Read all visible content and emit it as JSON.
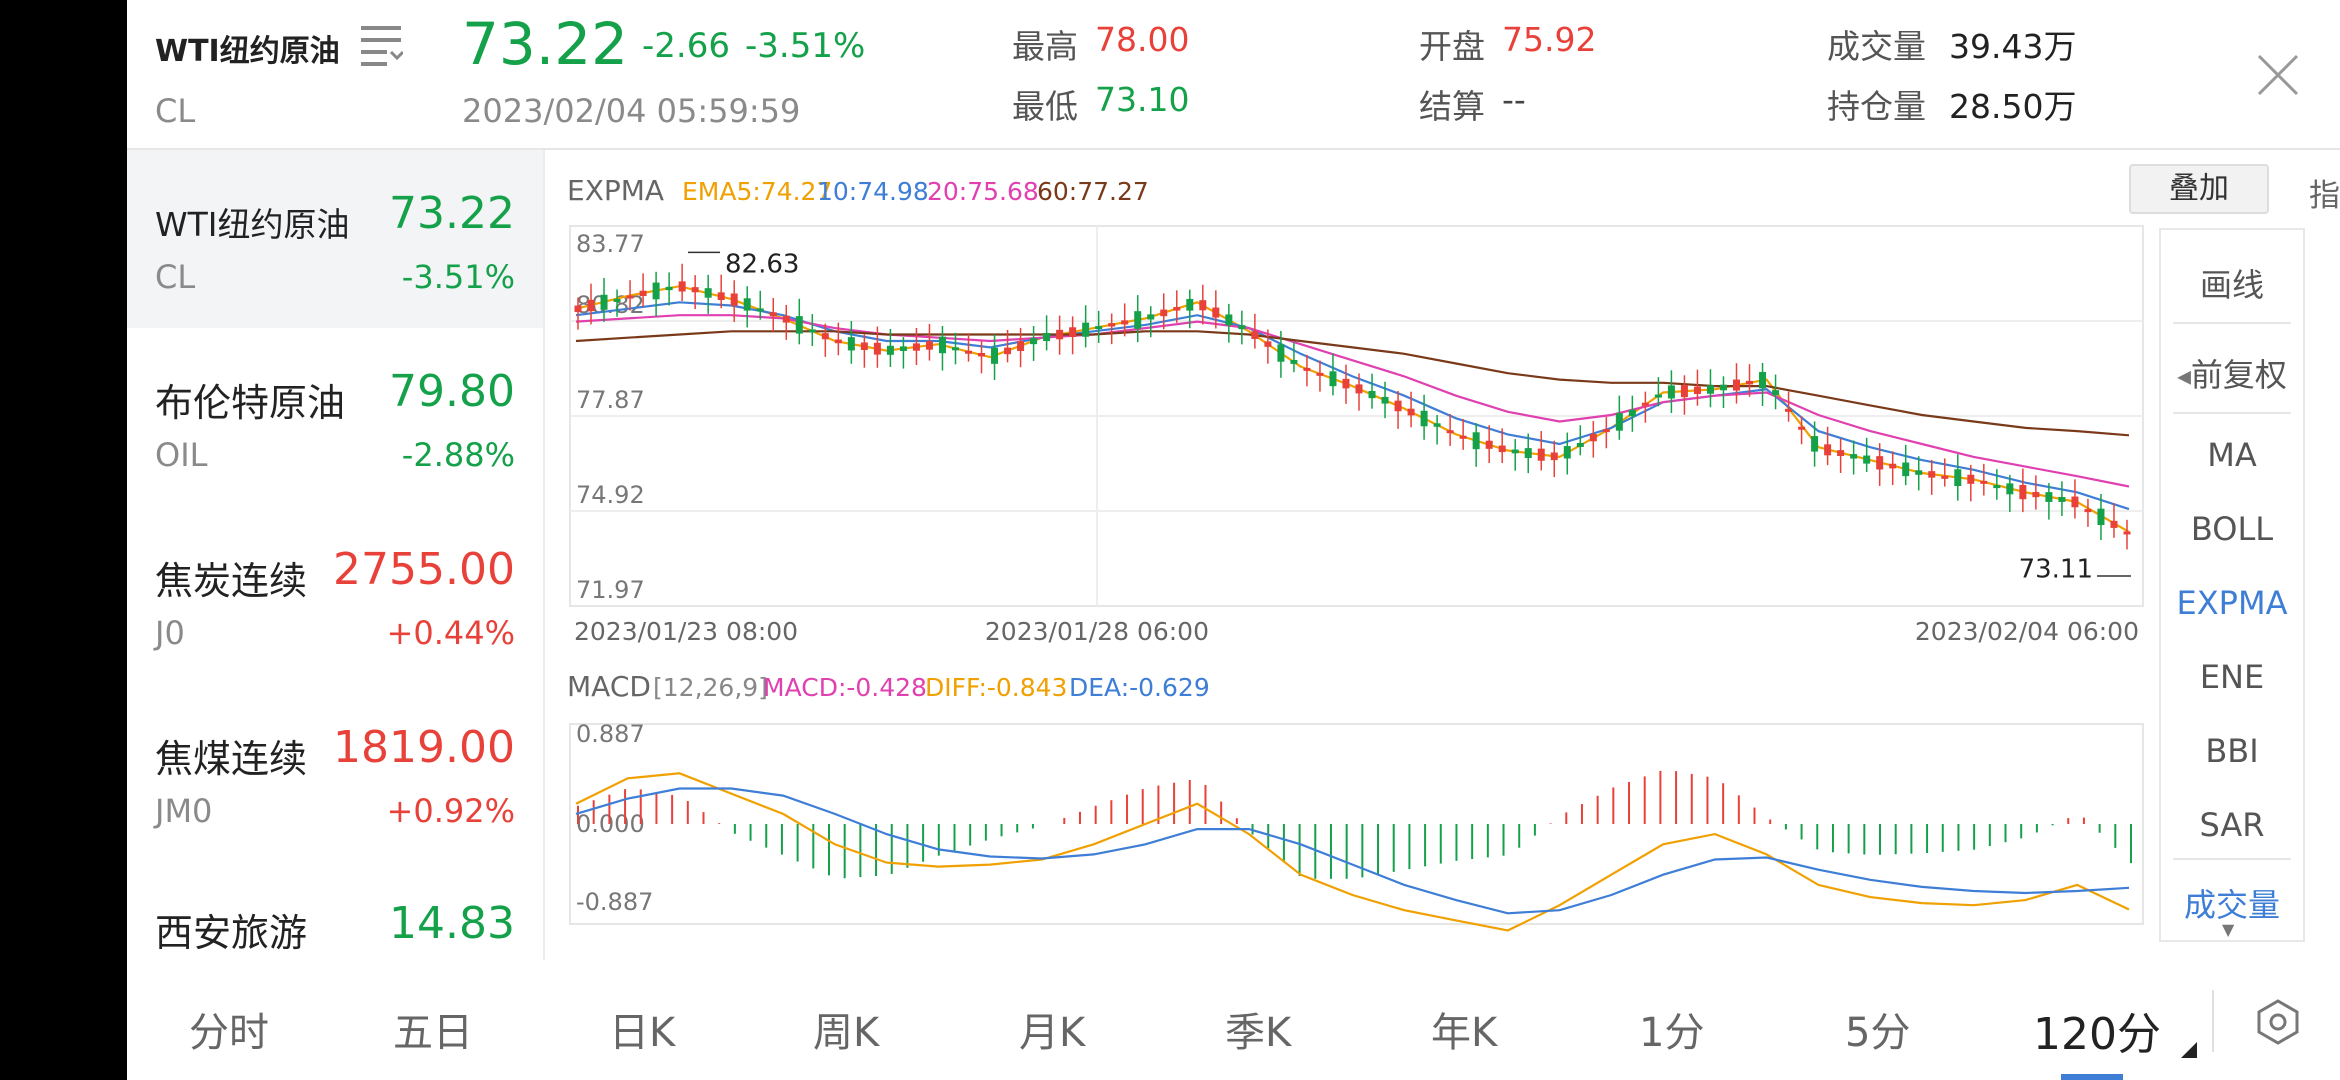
{
  "header": {
    "name": "WTI纽约原油",
    "code": "CL",
    "price": "73.22",
    "change": "-2.66",
    "change_pct": "-3.51%",
    "datetime": "2023/02/04 05:59:59",
    "stats": {
      "high_label": "最高",
      "high_value": "78.00",
      "low_label": "最低",
      "low_value": "73.10",
      "open_label": "开盘",
      "open_value": "75.92",
      "settle_label": "结算",
      "settle_value": "--",
      "volume_label": "成交量",
      "volume_value": "39.43万",
      "oi_label": "持仓量",
      "oi_value": "28.50万"
    }
  },
  "sidebar": {
    "items": [
      {
        "name": "WTI纽约原油",
        "code": "CL",
        "price": "73.22",
        "change": "-3.51%",
        "color": "#14a14a"
      },
      {
        "name": "布伦特原油",
        "code": "OIL",
        "price": "79.80",
        "change": "-2.88%",
        "color": "#14a14a"
      },
      {
        "name": "焦炭连续",
        "code": "J0",
        "price": "2755.00",
        "change": "+0.44%",
        "color": "#e8413a"
      },
      {
        "name": "焦煤连续",
        "code": "JM0",
        "price": "1819.00",
        "change": "+0.92%",
        "color": "#e8413a"
      },
      {
        "name": "西安旅游",
        "code": "",
        "price": "14.83",
        "change": "",
        "color": "#14a14a"
      }
    ]
  },
  "main_chart": {
    "indicator": "EXPMA",
    "ema5": "EMA5:74.27",
    "ema10": "10:74.98",
    "ema20": "20:75.68",
    "ema60": "60:77.27",
    "overlay_button": "叠加",
    "indicator_button": "指标",
    "y_ticks": [
      "83.77",
      "80.82",
      "77.87",
      "74.92",
      "71.97"
    ],
    "x_ticks": [
      "2023/01/23 08:00",
      "2023/01/28 06:00",
      "2023/02/04 06:00"
    ],
    "high_marker": "82.63",
    "low_marker": "73.11"
  },
  "macd": {
    "title": "MACD",
    "params": "[12,26,9]",
    "macd": "MACD:-0.428",
    "diff": "DIFF:-0.843",
    "dea": "DEA:-0.629",
    "y_ticks": [
      "0.887",
      "0.000",
      "-0.887"
    ]
  },
  "right_panel": {
    "draw": "画线",
    "adjust": "前复权",
    "indicators": [
      "MA",
      "BOLL",
      "EXPMA",
      "ENE",
      "BBI",
      "SAR",
      "成交量"
    ],
    "active": "EXPMA"
  },
  "tabs": [
    "分时",
    "五日",
    "日K",
    "周K",
    "月K",
    "季K",
    "年K",
    "1分",
    "5分",
    "120分"
  ],
  "active_tab": "120分",
  "colors": {
    "up": "#e8413a",
    "down": "#14a14a",
    "ema5": "#f0a000",
    "ema10": "#3e7ed6",
    "ema20": "#e040b0",
    "ema60": "#7a3a1a",
    "accent": "#3e7ed6"
  },
  "chart_data": {
    "type": "line",
    "title": "EXPMA",
    "x_range_labels": [
      "2023/01/23 08:00",
      "2023/01/28 06:00",
      "2023/02/04 06:00"
    ],
    "ylim": [
      71.97,
      83.77
    ],
    "series": [
      {
        "name": "EMA5",
        "values": [
          81.2,
          81.6,
          81.9,
          81.5,
          80.9,
          80.2,
          79.9,
          80.1,
          79.7,
          80.3,
          80.6,
          80.9,
          81.4,
          80.5,
          79.4,
          78.8,
          78.1,
          77.3,
          76.8,
          76.6,
          77.5,
          78.6,
          78.7,
          79.0,
          76.9,
          76.5,
          76.1,
          75.9,
          75.5,
          75.2,
          74.27
        ]
      },
      {
        "name": "10",
        "values": [
          81.0,
          81.2,
          81.4,
          81.3,
          81.0,
          80.5,
          80.2,
          80.2,
          80.0,
          80.3,
          80.5,
          80.7,
          81.0,
          80.6,
          79.8,
          79.1,
          78.5,
          77.8,
          77.3,
          77.0,
          77.5,
          78.3,
          78.5,
          78.7,
          77.4,
          76.9,
          76.5,
          76.2,
          75.8,
          75.5,
          74.98
        ]
      },
      {
        "name": "20",
        "values": [
          80.8,
          80.9,
          81.0,
          81.0,
          80.9,
          80.6,
          80.4,
          80.3,
          80.2,
          80.3,
          80.4,
          80.6,
          80.8,
          80.6,
          80.1,
          79.6,
          79.1,
          78.5,
          78.0,
          77.7,
          77.9,
          78.3,
          78.5,
          78.6,
          77.9,
          77.4,
          77.0,
          76.6,
          76.3,
          76.0,
          75.68
        ]
      },
      {
        "name": "60",
        "values": [
          80.2,
          80.3,
          80.4,
          80.5,
          80.5,
          80.5,
          80.4,
          80.4,
          80.4,
          80.4,
          80.4,
          80.5,
          80.5,
          80.4,
          80.2,
          80.0,
          79.8,
          79.5,
          79.2,
          79.0,
          78.9,
          78.9,
          78.8,
          78.8,
          78.5,
          78.2,
          77.9,
          77.7,
          77.5,
          77.4,
          77.27
        ]
      }
    ],
    "macd": {
      "ylim": [
        -0.887,
        0.887
      ],
      "diff": [
        0.2,
        0.45,
        0.5,
        0.3,
        0.1,
        -0.2,
        -0.38,
        -0.42,
        -0.4,
        -0.35,
        -0.2,
        0.0,
        0.2,
        -0.1,
        -0.5,
        -0.7,
        -0.85,
        -0.95,
        -1.05,
        -0.8,
        -0.5,
        -0.2,
        -0.1,
        -0.3,
        -0.6,
        -0.72,
        -0.78,
        -0.8,
        -0.75,
        -0.6,
        -0.843
      ],
      "dea": [
        0.1,
        0.25,
        0.35,
        0.35,
        0.28,
        0.1,
        -0.1,
        -0.25,
        -0.32,
        -0.34,
        -0.3,
        -0.2,
        -0.05,
        -0.05,
        -0.2,
        -0.4,
        -0.6,
        -0.75,
        -0.88,
        -0.85,
        -0.7,
        -0.5,
        -0.35,
        -0.33,
        -0.45,
        -0.55,
        -0.62,
        -0.66,
        -0.68,
        -0.66,
        -0.629
      ],
      "macd": [
        0.2,
        0.4,
        0.3,
        -0.1,
        -0.35,
        -0.6,
        -0.56,
        -0.34,
        -0.16,
        -0.02,
        0.2,
        0.4,
        0.5,
        -0.1,
        -0.6,
        -0.6,
        -0.5,
        -0.4,
        -0.34,
        0.1,
        0.4,
        0.6,
        0.5,
        0.06,
        -0.3,
        -0.34,
        -0.32,
        -0.28,
        -0.14,
        0.12,
        -0.428
      ]
    }
  }
}
